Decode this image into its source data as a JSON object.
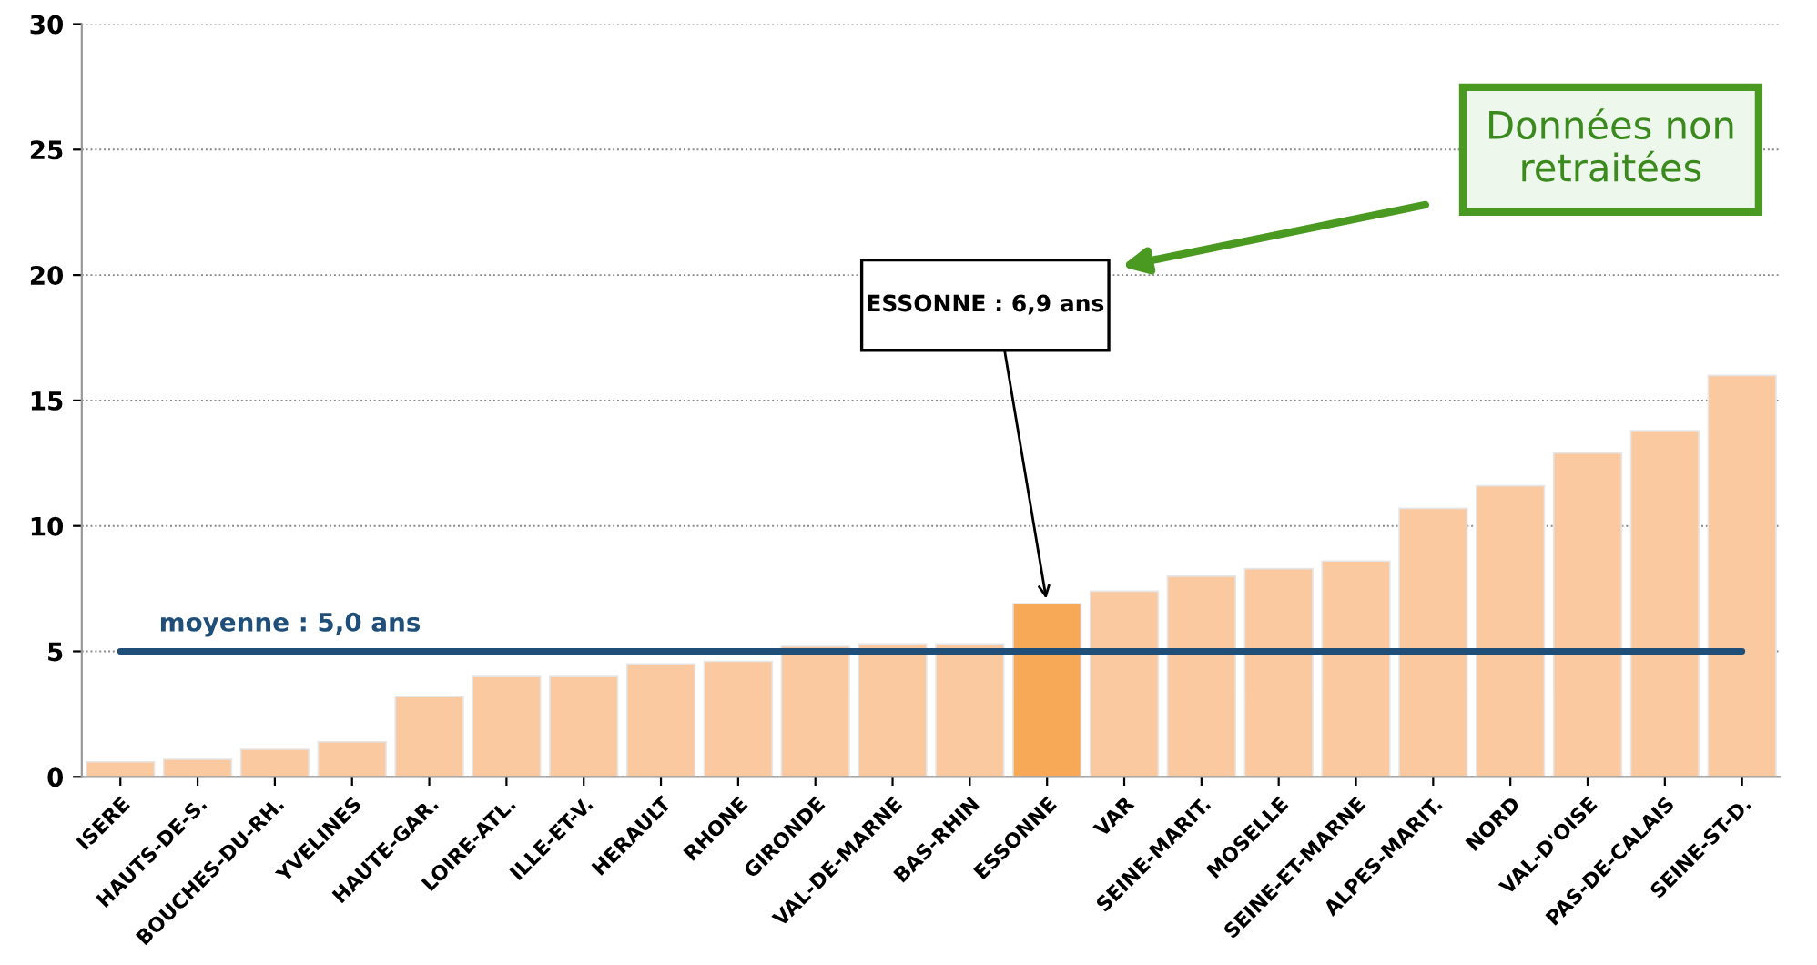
{
  "chart_data": {
    "type": "bar",
    "categories": [
      "ISERE",
      "HAUTS-DE-S.",
      "BOUCHES-DU-RH.",
      "YVELINES",
      "HAUTE-GAR.",
      "LOIRE-ATL.",
      "ILLE-ET-V.",
      "HERAULT",
      "RHONE",
      "GIRONDE",
      "VAL-DE-MARNE",
      "BAS-RHIN",
      "ESSONNE",
      "VAR",
      "SEINE-MARIT.",
      "MOSELLE",
      "SEINE-ET-MARNE",
      "ALPES-MARIT.",
      "NORD",
      "VAL-D'OISE",
      "PAS-DE-CALAIS",
      "SEINE-ST-D."
    ],
    "values": [
      0.6,
      0.7,
      1.1,
      1.4,
      3.2,
      4.0,
      4.0,
      4.5,
      4.6,
      5.2,
      5.3,
      5.3,
      6.9,
      7.4,
      8.0,
      8.3,
      8.6,
      10.7,
      11.6,
      12.9,
      13.8,
      16.0
    ],
    "colors": [
      "#fac9a0",
      "#fac9a0",
      "#fac9a0",
      "#fac9a0",
      "#fac9a0",
      "#fac9a0",
      "#fac9a0",
      "#fac9a0",
      "#fac9a0",
      "#fac9a0",
      "#fac9a0",
      "#fac9a0",
      "#f8a957",
      "#fac9a0",
      "#fac9a0",
      "#fac9a0",
      "#fac9a0",
      "#fac9a0",
      "#fac9a0",
      "#fac9a0",
      "#fac9a0",
      "#fac9a0"
    ],
    "ylim": [
      0,
      30
    ],
    "yticks": [
      0,
      5,
      10,
      15,
      20,
      25,
      30
    ],
    "grid": "y",
    "ref_lines": [
      {
        "axis": "y",
        "value": 5.0,
        "label": "moyenne : 5,0 ans",
        "color": "#1f4e79"
      }
    ],
    "annotations": [
      "ESSONNE : 6,9 ans",
      "Données non retraitées"
    ]
  }
}
